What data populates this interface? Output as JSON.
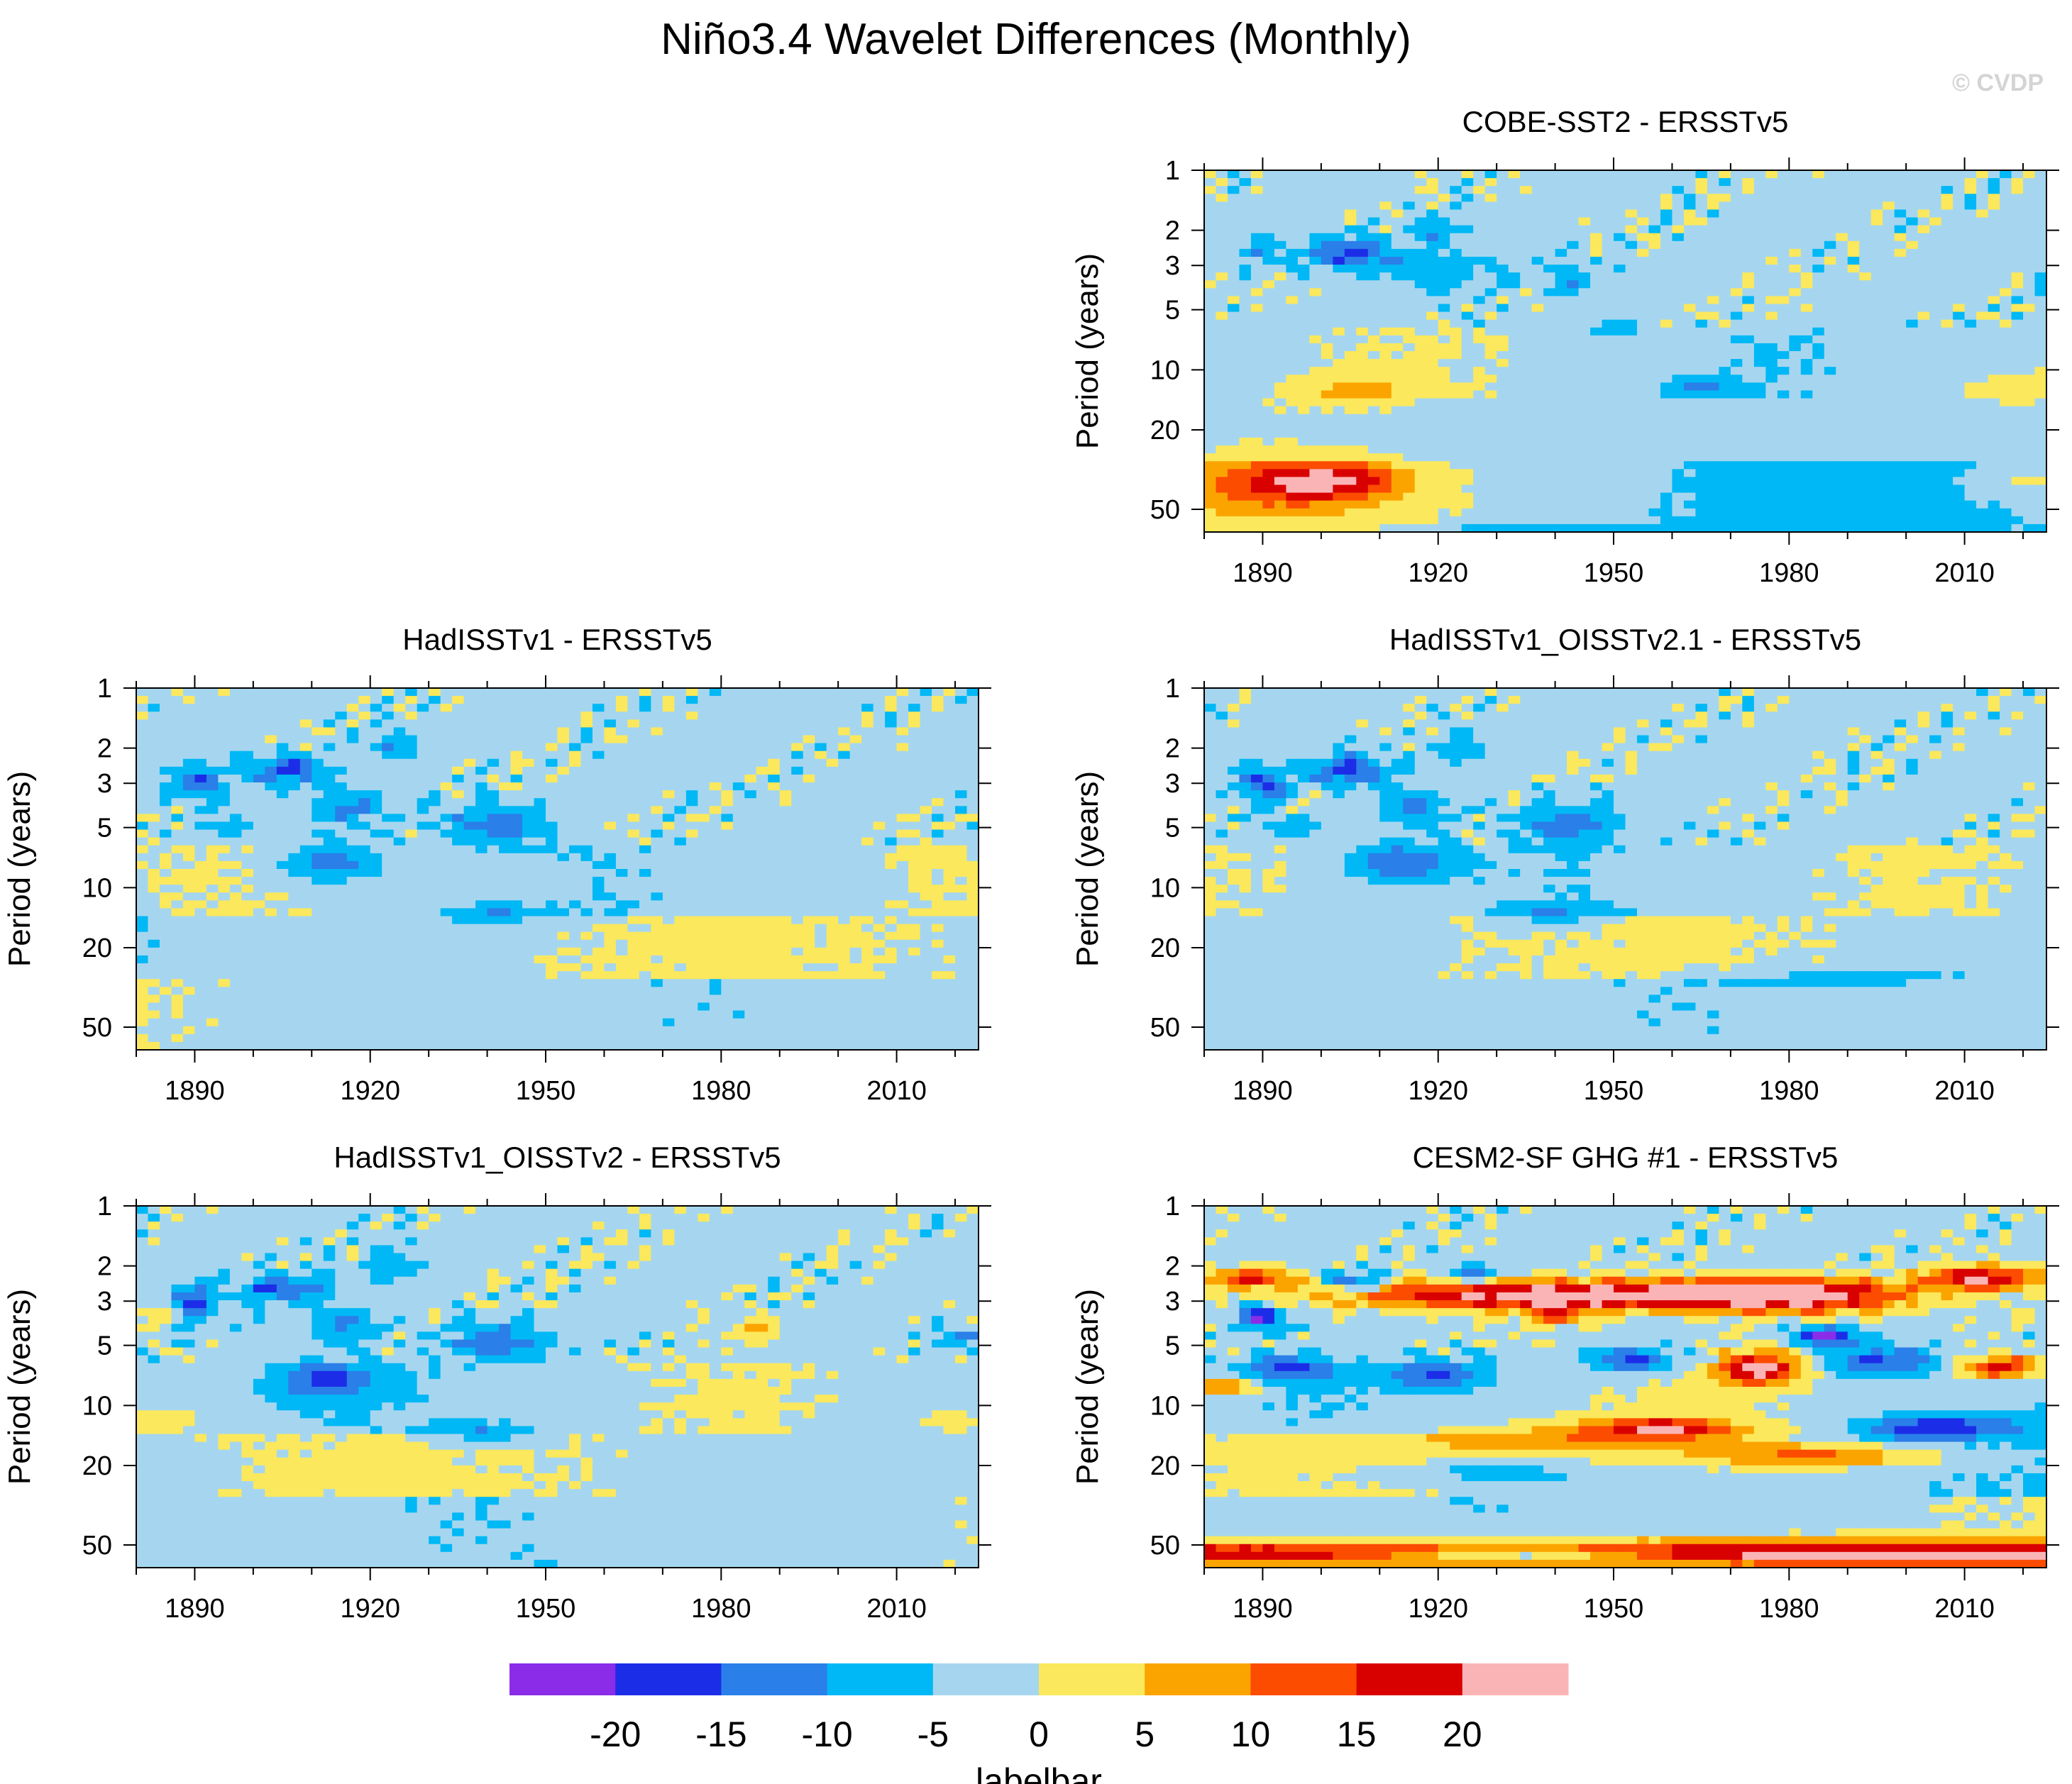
{
  "figure": {
    "title": "Niño3.4 Wavelet Differences (Monthly)",
    "copyright": "© CVDP"
  },
  "chart_data": [
    {
      "type": "heatmap",
      "panel": "top-right",
      "title": "COBE-SST2 - ERSSTv5",
      "xlabel": "",
      "ylabel": "Period (years)",
      "xlim": [
        1880,
        2024
      ],
      "ylim": [
        1,
        65
      ],
      "yscale": "log",
      "yreversed": true,
      "xticks": [
        1890,
        1920,
        1950,
        1980,
        2010
      ],
      "yticks": [
        1,
        2,
        3,
        5,
        10,
        20,
        50
      ],
      "features": [
        {
          "year": 1893,
          "period": 38,
          "value": 10,
          "sx": 12,
          "sp": 0.22
        },
        {
          "year": 1902,
          "period": 36,
          "value": 14,
          "sx": 9,
          "sp": 0.15
        },
        {
          "year": 1905,
          "period": 13,
          "value": 7,
          "sx": 8,
          "sp": 0.12
        },
        {
          "year": 2018,
          "period": 13,
          "value": 6,
          "sx": 5,
          "sp": 0.12
        },
        {
          "year": 2020,
          "period": 36,
          "value": 6,
          "sx": 5,
          "sp": 0.15
        },
        {
          "year": 1905,
          "period": 2.6,
          "value": -14,
          "sx": 5,
          "sp": 0.12
        },
        {
          "year": 1920,
          "period": 3.2,
          "value": -7,
          "sx": 7,
          "sp": 0.15
        },
        {
          "year": 1920,
          "period": 2.0,
          "value": -9,
          "sx": 3,
          "sp": 0.1
        },
        {
          "year": 1890,
          "period": 2.6,
          "value": -6,
          "sx": 3,
          "sp": 0.15
        },
        {
          "year": 1943,
          "period": 3.6,
          "value": -6,
          "sx": 4,
          "sp": 0.12
        },
        {
          "year": 1965,
          "period": 12.5,
          "value": -7,
          "sx": 4,
          "sp": 0.08
        },
        {
          "year": 1950,
          "period": 6.2,
          "value": -6,
          "sx": 3,
          "sp": 0.08
        },
        {
          "year": 1935,
          "period": 62,
          "value": -6,
          "sx": 15,
          "sp": 0.05
        }
      ]
    },
    {
      "type": "heatmap",
      "panel": "middle-left",
      "title": "HadISSTv1 - ERSSTv5",
      "xlabel": "",
      "ylabel": "Period (years)",
      "xlim": [
        1880,
        2024
      ],
      "ylim": [
        1,
        65
      ],
      "yscale": "log",
      "yreversed": true,
      "xticks": [
        1890,
        1920,
        1950,
        1980,
        2010
      ],
      "yticks": [
        1,
        2,
        3,
        5,
        10,
        20,
        50
      ],
      "features": [
        {
          "year": 1890,
          "period": 3.0,
          "value": -13,
          "sx": 3,
          "sp": 0.15
        },
        {
          "year": 1905,
          "period": 2.6,
          "value": -14,
          "sx": 5,
          "sp": 0.12
        },
        {
          "year": 1913,
          "period": 7.5,
          "value": -12,
          "sx": 6,
          "sp": 0.15
        },
        {
          "year": 1916,
          "period": 4.0,
          "value": -9,
          "sx": 4,
          "sp": 0.15
        },
        {
          "year": 1924,
          "period": 2.0,
          "value": -8,
          "sx": 3,
          "sp": 0.12
        },
        {
          "year": 1942,
          "period": 4.8,
          "value": -11,
          "sx": 6,
          "sp": 0.15
        },
        {
          "year": 1940,
          "period": 14,
          "value": -8,
          "sx": 6,
          "sp": 0.08
        },
        {
          "year": 1896,
          "period": 5.0,
          "value": -6,
          "sx": 3,
          "sp": 0.07
        }
      ]
    },
    {
      "type": "heatmap",
      "panel": "middle-right",
      "title": "HadISSTv1_OISSTv2.1 - ERSSTv5",
      "xlabel": "",
      "ylabel": "Period (years)",
      "xlim": [
        1880,
        2024
      ],
      "ylim": [
        1,
        65
      ],
      "yscale": "log",
      "yreversed": true,
      "xticks": [
        1890,
        1920,
        1950,
        1980,
        2010
      ],
      "yticks": [
        1,
        2,
        3,
        5,
        10,
        20,
        50
      ],
      "features": [
        {
          "year": 1890,
          "period": 3.0,
          "value": -13,
          "sx": 3,
          "sp": 0.15
        },
        {
          "year": 1905,
          "period": 2.6,
          "value": -14,
          "sx": 5,
          "sp": 0.12
        },
        {
          "year": 1913,
          "period": 7.5,
          "value": -12,
          "sx": 6,
          "sp": 0.15
        },
        {
          "year": 1916,
          "period": 4.0,
          "value": -9,
          "sx": 4,
          "sp": 0.15
        },
        {
          "year": 1924,
          "period": 2.0,
          "value": -8,
          "sx": 3,
          "sp": 0.12
        },
        {
          "year": 1942,
          "period": 4.8,
          "value": -11,
          "sx": 6,
          "sp": 0.15
        },
        {
          "year": 1940,
          "period": 14,
          "value": -8,
          "sx": 6,
          "sp": 0.08
        },
        {
          "year": 1896,
          "period": 5.0,
          "value": -6,
          "sx": 3,
          "sp": 0.07
        },
        {
          "year": 1990,
          "period": 28,
          "value": -7,
          "sx": 16,
          "sp": 0.05
        }
      ]
    },
    {
      "type": "heatmap",
      "panel": "bottom-left",
      "title": "HadISSTv1_OISSTv2 - ERSSTv5",
      "xlabel": "",
      "ylabel": "Period (years)",
      "xlim": [
        1880,
        2024
      ],
      "ylim": [
        1,
        65
      ],
      "yscale": "log",
      "yreversed": true,
      "xticks": [
        1890,
        1920,
        1950,
        1980,
        2010
      ],
      "yticks": [
        1,
        2,
        3,
        5,
        10,
        20,
        50
      ],
      "features": [
        {
          "year": 1890,
          "period": 3.0,
          "value": -13,
          "sx": 3,
          "sp": 0.15
        },
        {
          "year": 1905,
          "period": 2.6,
          "value": -14,
          "sx": 5,
          "sp": 0.12
        },
        {
          "year": 1913,
          "period": 7.5,
          "value": -12,
          "sx": 6,
          "sp": 0.15
        },
        {
          "year": 1916,
          "period": 4.0,
          "value": -9,
          "sx": 4,
          "sp": 0.15
        },
        {
          "year": 1924,
          "period": 2.0,
          "value": -8,
          "sx": 3,
          "sp": 0.12
        },
        {
          "year": 1942,
          "period": 4.8,
          "value": -11,
          "sx": 6,
          "sp": 0.15
        },
        {
          "year": 1940,
          "period": 14,
          "value": -8,
          "sx": 6,
          "sp": 0.08
        },
        {
          "year": 1986,
          "period": 4.2,
          "value": 8,
          "sx": 3,
          "sp": 0.1
        },
        {
          "year": 1884,
          "period": 12,
          "value": 7,
          "sx": 4,
          "sp": 0.08
        },
        {
          "year": 2020,
          "period": 12,
          "value": 7,
          "sx": 4,
          "sp": 0.08
        },
        {
          "year": 1883,
          "period": 3.5,
          "value": 6,
          "sx": 3,
          "sp": 0.08
        },
        {
          "year": 2021,
          "period": 4.5,
          "value": -8,
          "sx": 3,
          "sp": 0.08
        }
      ]
    },
    {
      "type": "heatmap",
      "panel": "bottom-right",
      "title": "CESM2-SF GHG #1 - ERSSTv5",
      "xlabel": "",
      "ylabel": "Period (years)",
      "xlim": [
        1880,
        2024
      ],
      "ylim": [
        1,
        65
      ],
      "yscale": "log",
      "yreversed": true,
      "xticks": [
        1890,
        1920,
        1950,
        1980,
        2010
      ],
      "yticks": [
        1,
        2,
        3,
        5,
        10,
        20,
        50
      ],
      "features": [
        {
          "year": 1940,
          "period": 2.8,
          "value": 26,
          "sx": 26,
          "sp": 0.12
        },
        {
          "year": 1980,
          "period": 2.8,
          "value": 24,
          "sx": 14,
          "sp": 0.14
        },
        {
          "year": 1975,
          "period": 6.5,
          "value": 24,
          "sx": 5,
          "sp": 0.14
        },
        {
          "year": 2013,
          "period": 2.3,
          "value": 22,
          "sx": 7,
          "sp": 0.1
        },
        {
          "year": 2016,
          "period": 6.5,
          "value": 20,
          "sx": 5,
          "sp": 0.1
        },
        {
          "year": 1888,
          "period": 2.3,
          "value": 18,
          "sx": 5,
          "sp": 0.08
        },
        {
          "year": 1955,
          "period": 55,
          "value": 26,
          "sx": 120,
          "sp": 0.1
        },
        {
          "year": 1935,
          "period": 55,
          "value": -27,
          "sx": 18,
          "sp": 0.04
        },
        {
          "year": 1958,
          "period": 13,
          "value": 17,
          "sx": 8,
          "sp": 0.09
        },
        {
          "year": 1985,
          "period": 18,
          "value": 14,
          "sx": 14,
          "sp": 0.1
        },
        {
          "year": 1945,
          "period": 15,
          "value": 10,
          "sx": 22,
          "sp": 0.13
        },
        {
          "year": 1884,
          "period": 8,
          "value": 15,
          "sx": 4,
          "sp": 0.08
        },
        {
          "year": 1890,
          "period": 3.6,
          "value": -17,
          "sx": 3,
          "sp": 0.1
        },
        {
          "year": 1895,
          "period": 6.5,
          "value": -12,
          "sx": 6,
          "sp": 0.12
        },
        {
          "year": 1906,
          "period": 2.4,
          "value": -16,
          "sx": 3,
          "sp": 0.08
        },
        {
          "year": 1920,
          "period": 7.0,
          "value": -12,
          "sx": 6,
          "sp": 0.12
        },
        {
          "year": 1926,
          "period": 2.2,
          "value": -14,
          "sx": 3,
          "sp": 0.08
        },
        {
          "year": 1953,
          "period": 6.0,
          "value": -15,
          "sx": 5,
          "sp": 0.1
        },
        {
          "year": 1986,
          "period": 4.5,
          "value": -18,
          "sx": 4,
          "sp": 0.08
        },
        {
          "year": 1996,
          "period": 6.0,
          "value": -13,
          "sx": 7,
          "sp": 0.12
        },
        {
          "year": 2005,
          "period": 13,
          "value": -15,
          "sx": 10,
          "sp": 0.1
        },
        {
          "year": 1930,
          "period": 22,
          "value": -7,
          "sx": 12,
          "sp": 0.1
        },
        {
          "year": 1940,
          "period": 3.5,
          "value": 13,
          "sx": 4,
          "sp": 0.1
        }
      ]
    }
  ],
  "legend": {
    "title": "labelbar",
    "levels": [
      "-20",
      "-15",
      "-10",
      "-5",
      "0",
      "5",
      "10",
      "15",
      "20"
    ],
    "colors": [
      "#8b2ce8",
      "#1c2de8",
      "#2a7fe8",
      "#00b8f5",
      "#a6d6ef",
      "#fbe85c",
      "#fba400",
      "#fc4c00",
      "#d90000",
      "#fbb4b6"
    ]
  },
  "colors": {
    "axis": "#000000",
    "background": "#ffffff",
    "copyright": "#d4d4d4"
  }
}
